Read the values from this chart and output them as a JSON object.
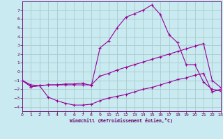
{
  "background_color": "#c8eaf0",
  "grid_color": "#aacccc",
  "line_color": "#990099",
  "xlabel": "Windchill (Refroidissement éolien,°C)",
  "xlabel_color": "#660066",
  "tick_color": "#660066",
  "xlim": [
    0,
    23
  ],
  "ylim": [
    -4.5,
    8.0
  ],
  "yticks": [
    -4,
    -3,
    -2,
    -1,
    0,
    1,
    2,
    3,
    4,
    5,
    6,
    7
  ],
  "xticks": [
    0,
    1,
    2,
    3,
    4,
    5,
    6,
    7,
    8,
    9,
    10,
    11,
    12,
    13,
    14,
    15,
    16,
    17,
    18,
    19,
    20,
    21,
    22,
    23
  ],
  "line1_x": [
    0,
    1,
    2,
    3,
    4,
    5,
    6,
    7,
    8,
    9,
    10,
    11,
    12,
    13,
    14,
    15,
    16,
    17,
    18,
    19,
    20,
    21,
    22,
    23
  ],
  "line1_y": [
    -1.0,
    -1.7,
    -1.6,
    -1.5,
    -1.5,
    -1.5,
    -1.5,
    -1.5,
    -1.5,
    -0.5,
    -0.2,
    0.2,
    0.5,
    0.8,
    1.1,
    1.4,
    1.7,
    2.0,
    2.3,
    2.6,
    2.9,
    3.2,
    -1.0,
    -1.8
  ],
  "line2_x": [
    0,
    1,
    2,
    3,
    4,
    5,
    6,
    7,
    8,
    9,
    10,
    11,
    12,
    13,
    14,
    15,
    16,
    17,
    18,
    19,
    20,
    21,
    22,
    23
  ],
  "line2_y": [
    -1.0,
    -1.5,
    -1.6,
    -2.9,
    -3.3,
    -3.6,
    -3.8,
    -3.8,
    -3.7,
    -3.3,
    -3.0,
    -2.8,
    -2.6,
    -2.3,
    -2.0,
    -1.8,
    -1.5,
    -1.2,
    -0.9,
    -0.7,
    -0.4,
    -0.2,
    -2.3,
    -2.0
  ],
  "line3_x": [
    0,
    1,
    2,
    3,
    4,
    5,
    6,
    7,
    8,
    9,
    10,
    11,
    12,
    13,
    14,
    15,
    16,
    17,
    18,
    19,
    20,
    21,
    22,
    23
  ],
  "line3_y": [
    -1.0,
    -1.7,
    -1.6,
    -1.5,
    -1.5,
    -1.4,
    -1.4,
    -1.3,
    -1.6,
    2.7,
    3.5,
    5.0,
    6.2,
    6.6,
    7.0,
    7.6,
    6.5,
    4.2,
    3.3,
    0.8,
    0.8,
    -1.2,
    -2.0,
    -2.2
  ]
}
